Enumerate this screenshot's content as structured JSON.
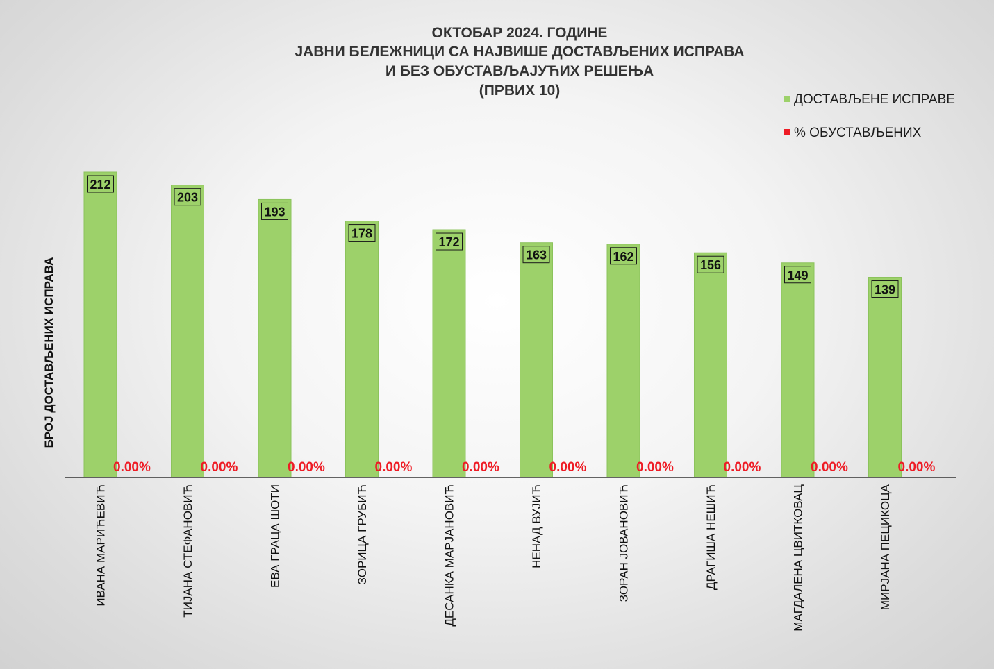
{
  "chart_data": {
    "type": "bar",
    "title": [
      "ОКТОБАР 2024. ГОДИНЕ",
      "ЈАВНИ БЕЛЕЖНИЦИ СА НАЈВИШЕ ДОСТАВЉЕНИХ ИСПРАВА",
      "И БЕЗ ОБУСТАВЉАЈУЋИХ РЕШЕЊА",
      "(ПРВИХ 10)"
    ],
    "xlabel": "",
    "ylabel": "БРОЈ ДОСТАВЉЕНИХ ИСПРАВА",
    "categories": [
      "ИВАНА МАРИЋЕВИЋ",
      "ТИЈАНА СТЕФАНОВИЋ",
      "ЕВА ГРАЦА ШОТИ",
      "ЗОРИЦА ГРУБИЋ",
      "ДЕСАНКА МАРЈАНОВИЋ",
      "НЕНАД ВУЈИЋ",
      "ЗОРАН ЈОВАНОВИЋ",
      "ДРАГИША НЕШИЋ",
      "МАГДАЛЕНА ЦВИТКОВАЦ",
      "МИРЈАНА ПЕЦИКОЦА"
    ],
    "series": [
      {
        "name": "ДОСТАВЉЕНЕ ИСПРАВЕ",
        "values": [
          212,
          203,
          193,
          178,
          172,
          163,
          162,
          156,
          149,
          139
        ],
        "color": "#9dd16a",
        "labels": [
          "212",
          "203",
          "193",
          "178",
          "172",
          "163",
          "162",
          "156",
          "149",
          "139"
        ]
      },
      {
        "name": "% ОБУСТАВЉЕНИХ",
        "values": [
          0,
          0,
          0,
          0,
          0,
          0,
          0,
          0,
          0,
          0
        ],
        "color": "#ee1c25",
        "labels": [
          "0.00%",
          "0.00%",
          "0.00%",
          "0.00%",
          "0.00%",
          "0.00%",
          "0.00%",
          "0.00%",
          "0.00%",
          "0.00%"
        ]
      }
    ],
    "ylim": [
      0,
      212
    ],
    "grid": false,
    "legend_position": "top-right"
  }
}
